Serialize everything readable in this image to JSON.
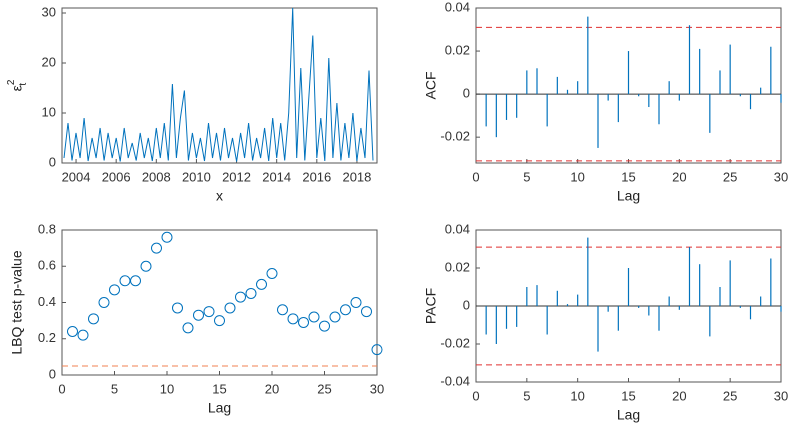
{
  "chart_data": [
    {
      "type": "line",
      "xlabel": "x",
      "ylabel": "ε",
      "ylabel_subscript": "t",
      "ylabel_superscript": "2",
      "color": "#0072bd",
      "xlim": [
        2003.3,
        2019
      ],
      "xticks": [
        2004,
        2006,
        2008,
        2010,
        2012,
        2014,
        2016,
        2018
      ],
      "ylim": [
        0,
        31
      ],
      "yticks": [
        0,
        10,
        20,
        30
      ],
      "x": [
        2003.4,
        2003.6,
        2003.8,
        2004.0,
        2004.2,
        2004.4,
        2004.6,
        2004.8,
        2005.0,
        2005.2,
        2005.4,
        2005.6,
        2005.8,
        2006.0,
        2006.2,
        2006.4,
        2006.6,
        2006.8,
        2007.0,
        2007.2,
        2007.4,
        2007.6,
        2007.8,
        2008.0,
        2008.2,
        2008.4,
        2008.6,
        2008.8,
        2009.0,
        2009.2,
        2009.4,
        2009.6,
        2009.8,
        2010.0,
        2010.2,
        2010.4,
        2010.6,
        2010.8,
        2011.0,
        2011.2,
        2011.4,
        2011.6,
        2011.8,
        2012.0,
        2012.2,
        2012.4,
        2012.6,
        2012.8,
        2013.0,
        2013.2,
        2013.4,
        2013.6,
        2013.8,
        2014.0,
        2014.2,
        2014.4,
        2014.6,
        2014.8,
        2015.0,
        2015.2,
        2015.4,
        2015.6,
        2015.8,
        2016.0,
        2016.2,
        2016.4,
        2016.6,
        2016.8,
        2017.0,
        2017.2,
        2017.4,
        2017.6,
        2017.8,
        2018.0,
        2018.2,
        2018.4,
        2018.6,
        2018.8
      ],
      "values": [
        1,
        8,
        0.5,
        6,
        1,
        9,
        0.4,
        5,
        1,
        7,
        0.5,
        6,
        1,
        5,
        0.3,
        7,
        1,
        4,
        0.5,
        6,
        1,
        5,
        0.4,
        7,
        1,
        8,
        0.5,
        15.8,
        1,
        9,
        14.5,
        0.5,
        6,
        1,
        5,
        0.4,
        8,
        1,
        6,
        0.5,
        7,
        1,
        5,
        0.3,
        6,
        1,
        8,
        0.5,
        5,
        1,
        7,
        0.4,
        9,
        1,
        8,
        0.5,
        10,
        31,
        1,
        19,
        0.5,
        13,
        25.5,
        1,
        9,
        0.4,
        21,
        1,
        12,
        0.5,
        8,
        1,
        10,
        0.4,
        7,
        1,
        18.5,
        0.5
      ]
    },
    {
      "type": "stem",
      "xlabel": "Lag",
      "ylabel": "ACF",
      "color": "#0072bd",
      "bounds": [
        0.031,
        -0.031
      ],
      "bounds_color": "#e03030",
      "xlim": [
        0,
        30
      ],
      "xticks": [
        0,
        5,
        10,
        15,
        20,
        25,
        30
      ],
      "ylim": [
        -0.032,
        0.04
      ],
      "yticks": [
        -0.02,
        0,
        0.02,
        0.04
      ],
      "x": [
        1,
        2,
        3,
        4,
        5,
        6,
        7,
        8,
        9,
        10,
        11,
        12,
        13,
        14,
        15,
        16,
        17,
        18,
        19,
        20,
        21,
        22,
        23,
        24,
        25,
        26,
        27,
        28,
        29,
        30
      ],
      "values": [
        -0.015,
        -0.02,
        -0.012,
        -0.011,
        0.011,
        0.012,
        -0.015,
        0.008,
        0.002,
        0.006,
        0.036,
        -0.025,
        -0.003,
        -0.013,
        0.02,
        -0.001,
        -0.006,
        -0.014,
        0.006,
        -0.003,
        0.032,
        0.021,
        -0.018,
        0.011,
        0.023,
        -0.001,
        -0.007,
        0.003,
        0.022,
        -0.004
      ]
    },
    {
      "type": "scatter",
      "xlabel": "Lag",
      "ylabel": "LBQ test p-value",
      "color": "#0072bd",
      "bounds": [
        0.05
      ],
      "bounds_color": "#f08050",
      "xlim": [
        0,
        30
      ],
      "xticks": [
        0,
        5,
        10,
        15,
        20,
        25,
        30
      ],
      "ylim": [
        0,
        0.8
      ],
      "yticks": [
        0,
        0.2,
        0.4,
        0.6,
        0.8
      ],
      "x": [
        1,
        2,
        3,
        4,
        5,
        6,
        7,
        8,
        9,
        10,
        11,
        12,
        13,
        14,
        15,
        16,
        17,
        18,
        19,
        20,
        21,
        22,
        23,
        24,
        25,
        26,
        27,
        28,
        29,
        30
      ],
      "values": [
        0.24,
        0.22,
        0.31,
        0.4,
        0.47,
        0.52,
        0.52,
        0.6,
        0.7,
        0.76,
        0.37,
        0.26,
        0.33,
        0.35,
        0.3,
        0.37,
        0.43,
        0.45,
        0.5,
        0.56,
        0.36,
        0.31,
        0.29,
        0.32,
        0.27,
        0.32,
        0.36,
        0.4,
        0.35,
        0.14
      ]
    },
    {
      "type": "stem",
      "xlabel": "Lag",
      "ylabel": "PACF",
      "color": "#0072bd",
      "bounds": [
        0.031,
        -0.031
      ],
      "bounds_color": "#e03030",
      "xlim": [
        0,
        30
      ],
      "xticks": [
        0,
        5,
        10,
        15,
        20,
        25,
        30
      ],
      "ylim": [
        -0.04,
        0.04
      ],
      "yticks": [
        -0.04,
        -0.02,
        0,
        0.02,
        0.04
      ],
      "x": [
        1,
        2,
        3,
        4,
        5,
        6,
        7,
        8,
        9,
        10,
        11,
        12,
        13,
        14,
        15,
        16,
        17,
        18,
        19,
        20,
        21,
        22,
        23,
        24,
        25,
        26,
        27,
        28,
        29,
        30
      ],
      "values": [
        -0.015,
        -0.02,
        -0.012,
        -0.011,
        0.01,
        0.011,
        -0.015,
        0.008,
        0.001,
        0.006,
        0.036,
        -0.024,
        -0.003,
        -0.013,
        0.02,
        -0.001,
        -0.005,
        -0.013,
        0.005,
        -0.002,
        0.031,
        0.022,
        -0.016,
        0.01,
        0.024,
        -0.001,
        -0.007,
        0.005,
        0.025,
        -0.003
      ]
    }
  ]
}
